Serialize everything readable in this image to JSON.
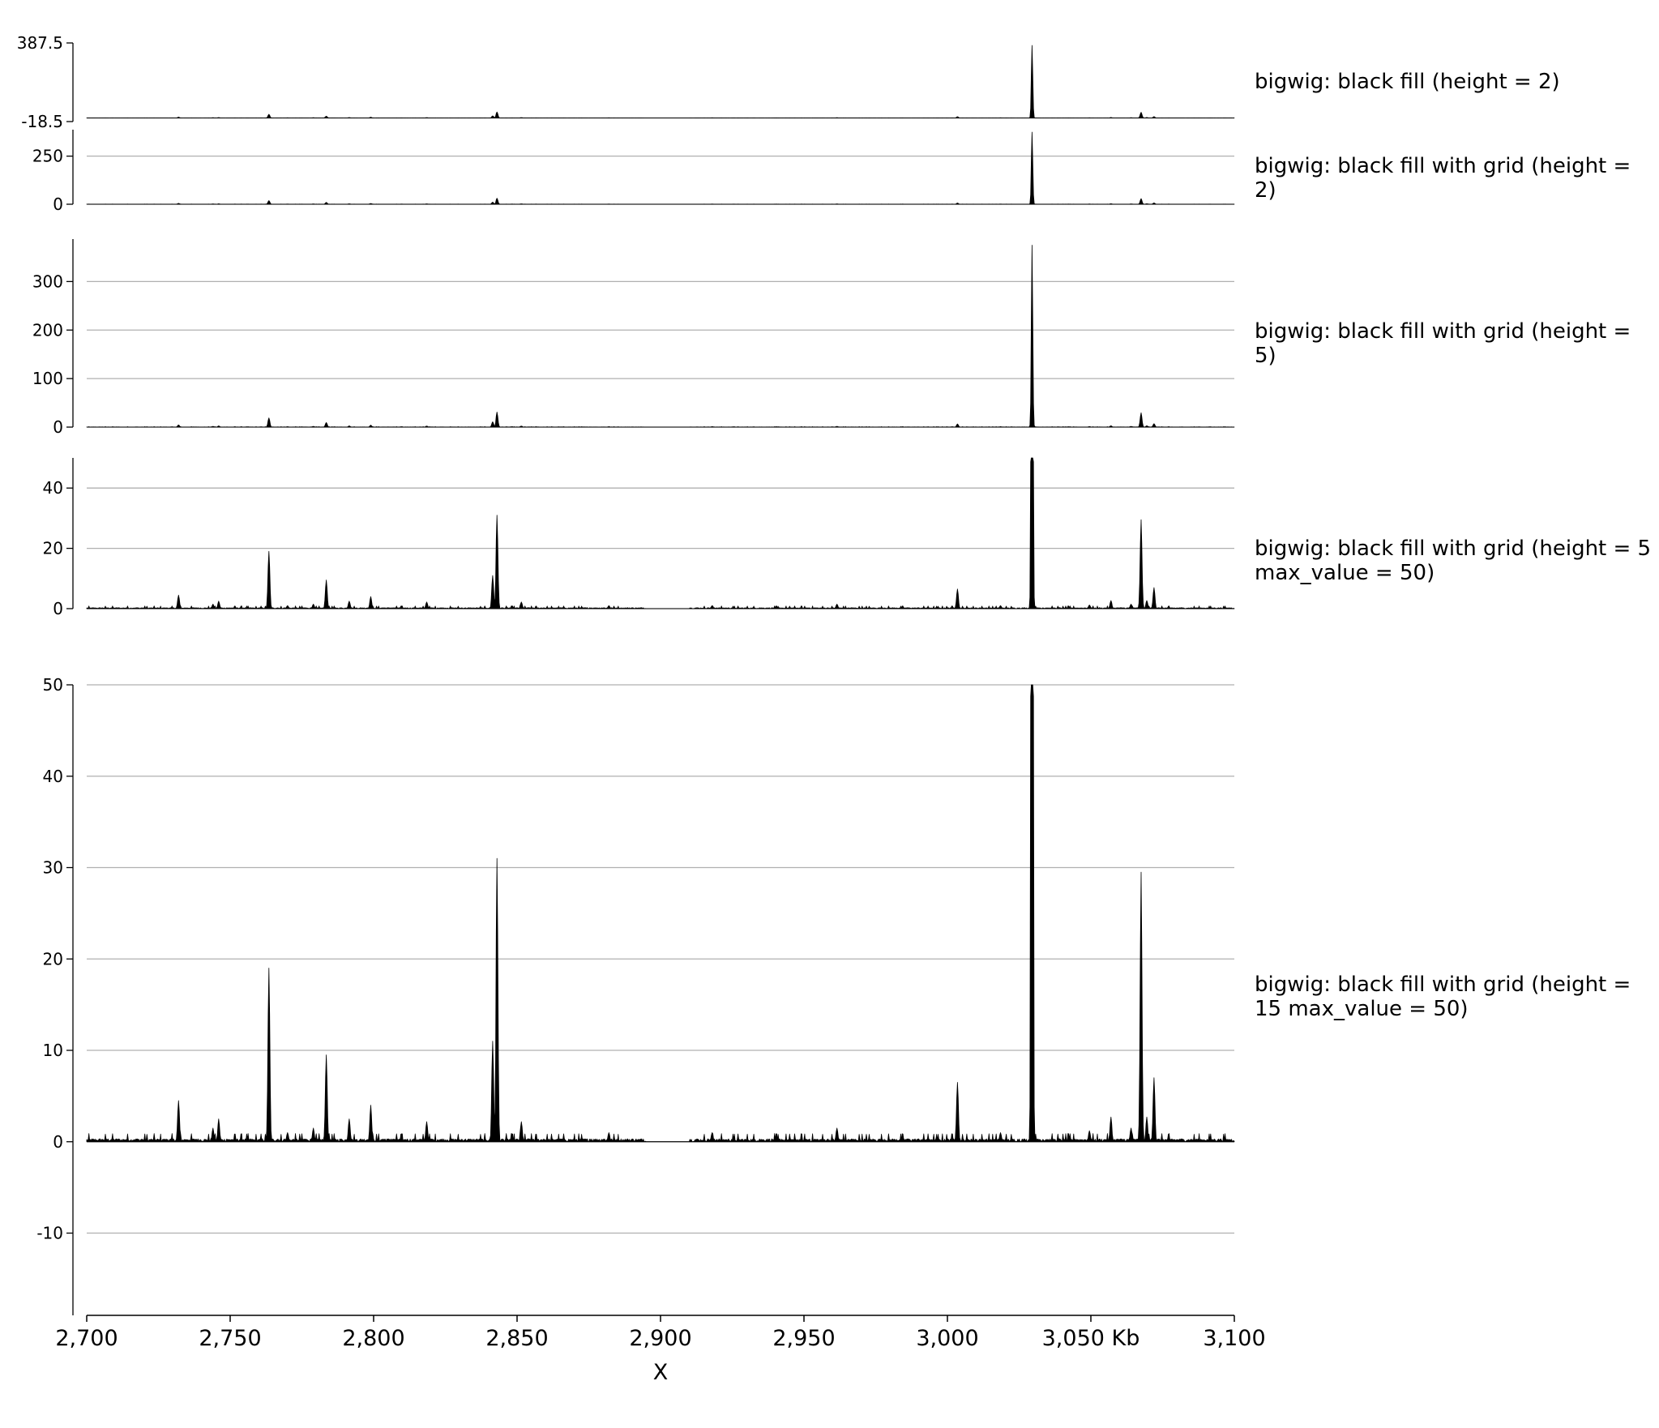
{
  "chart_data": {
    "type": "area",
    "colors": {
      "fill": "#000000",
      "grid": "#b0b0b0",
      "axis": "#000000"
    },
    "x_axis": {
      "range_kb": [
        2700,
        3100
      ],
      "ticks": [
        2700,
        2750,
        2800,
        2850,
        2900,
        2950,
        3000,
        3050,
        3100
      ],
      "tick_labels": [
        "2,700",
        "2,750",
        "2,800",
        "2,850",
        "2,900",
        "2,950",
        "3,000",
        "3,050 Kb",
        "3,100"
      ],
      "xlabel": "X"
    },
    "peaks_kb": [
      {
        "x": 2732,
        "y": 4.5
      },
      {
        "x": 2744,
        "y": 1.5
      },
      {
        "x": 2746,
        "y": 2.5
      },
      {
        "x": 2763.5,
        "y": 19
      },
      {
        "x": 2770,
        "y": 1
      },
      {
        "x": 2779,
        "y": 1.5
      },
      {
        "x": 2783.5,
        "y": 9.5
      },
      {
        "x": 2791.5,
        "y": 2.5
      },
      {
        "x": 2799,
        "y": 4
      },
      {
        "x": 2818.5,
        "y": 2.2
      },
      {
        "x": 2841.5,
        "y": 11
      },
      {
        "x": 2843,
        "y": 31
      },
      {
        "x": 2851.5,
        "y": 2.2
      },
      {
        "x": 2882,
        "y": 1
      },
      {
        "x": 2918,
        "y": 1
      },
      {
        "x": 2961.5,
        "y": 1.5
      },
      {
        "x": 3003.5,
        "y": 6.5
      },
      {
        "x": 3018.5,
        "y": 1
      },
      {
        "x": 3029.5,
        "y": 375
      },
      {
        "x": 3049.5,
        "y": 1.2
      },
      {
        "x": 3057,
        "y": 2.7
      },
      {
        "x": 3064,
        "y": 1.5
      },
      {
        "x": 3067.5,
        "y": 29.5
      },
      {
        "x": 3069.5,
        "y": 2.7
      },
      {
        "x": 3072,
        "y": 7
      }
    ],
    "gaps_kb": [
      [
        2895,
        2910
      ]
    ],
    "tracks": [
      {
        "label": "bigwig: black fill (height = 2)",
        "ylim": [
          -18.5,
          387.5
        ],
        "grid": false,
        "y_ticks": [
          387.5,
          -18.5
        ],
        "y_tick_labels": [
          "387.5",
          "-18.5"
        ]
      },
      {
        "label": "bigwig: black fill with grid (height = 2)",
        "ylim": [
          0,
          387.5
        ],
        "grid": true,
        "y_ticks": [
          0,
          250
        ],
        "y_tick_labels": [
          "0",
          "250"
        ]
      },
      {
        "label": "bigwig: black fill with grid (height = 5)",
        "ylim": [
          0,
          387.5
        ],
        "grid": true,
        "y_ticks": [
          0,
          100,
          200,
          300
        ],
        "y_tick_labels": [
          "0",
          "100",
          "200",
          "300"
        ]
      },
      {
        "label": "bigwig: black fill with grid (height = 5\nmax_value = 50)",
        "ylim": [
          0,
          50
        ],
        "grid": true,
        "y_ticks": [
          0,
          20,
          40
        ],
        "y_tick_labels": [
          "0",
          "20",
          "40"
        ]
      },
      {
        "label": "bigwig: black fill with grid (height =\n15 max_value = 50)",
        "ylim": [
          -19,
          50
        ],
        "grid": true,
        "y_ticks": [
          -10,
          0,
          10,
          20,
          30,
          40,
          50
        ],
        "y_tick_labels": [
          "-10",
          "0",
          "10",
          "20",
          "30",
          "40",
          "50"
        ]
      }
    ]
  }
}
